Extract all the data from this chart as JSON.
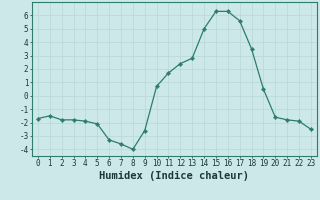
{
  "x": [
    0,
    1,
    2,
    3,
    4,
    5,
    6,
    7,
    8,
    9,
    10,
    11,
    12,
    13,
    14,
    15,
    16,
    17,
    18,
    19,
    20,
    21,
    22,
    23
  ],
  "y": [
    -1.7,
    -1.5,
    -1.8,
    -1.8,
    -1.9,
    -2.1,
    -3.3,
    -3.6,
    -4.0,
    -2.6,
    0.7,
    1.7,
    2.4,
    2.8,
    5.0,
    6.3,
    6.3,
    5.6,
    3.5,
    0.5,
    -1.6,
    -1.8,
    -1.9,
    -2.5
  ],
  "line_color": "#2d7d6e",
  "marker_color": "#2d7d6e",
  "bg_color": "#cce8e8",
  "grid_color": "#b8d8d8",
  "xlabel": "Humidex (Indice chaleur)",
  "xlim": [
    -0.5,
    23.5
  ],
  "ylim": [
    -4.5,
    7.0
  ],
  "yticks": [
    -4,
    -3,
    -2,
    -1,
    0,
    1,
    2,
    3,
    4,
    5,
    6
  ],
  "xticks": [
    0,
    1,
    2,
    3,
    4,
    5,
    6,
    7,
    8,
    9,
    10,
    11,
    12,
    13,
    14,
    15,
    16,
    17,
    18,
    19,
    20,
    21,
    22,
    23
  ],
  "font_color": "#1a3a3a",
  "axis_color": "#2d7d6e",
  "tick_fontsize": 5.5,
  "label_fontsize": 7.5
}
